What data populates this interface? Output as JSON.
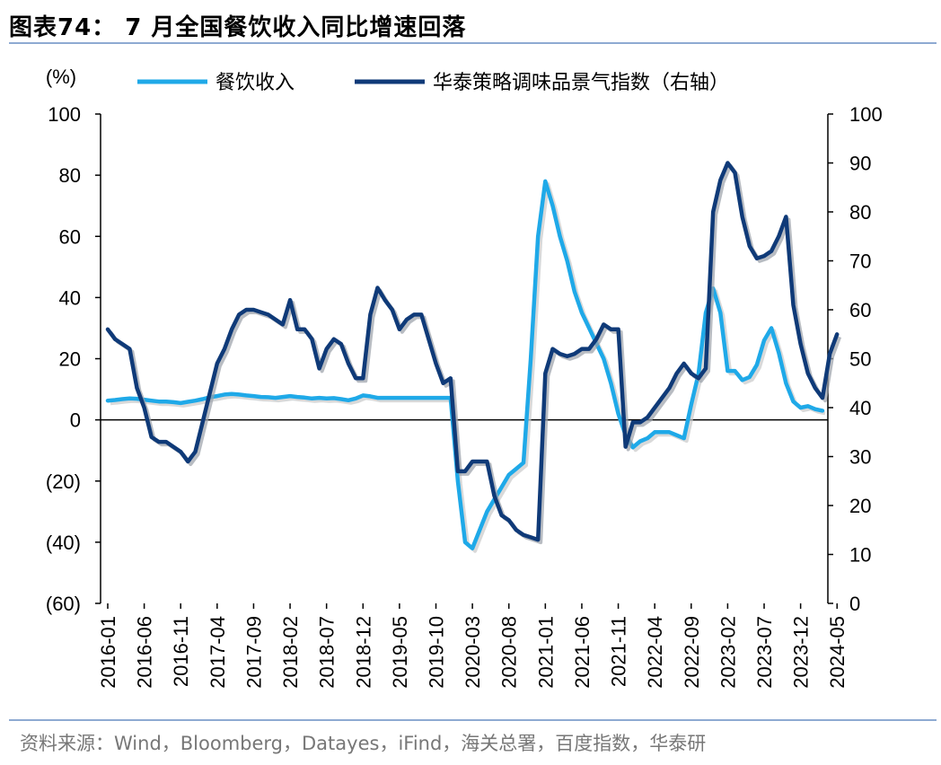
{
  "title": "图表74：  7 月全国餐饮收入同比增速回落",
  "source": "资料来源：Wind，Bloomberg，Datayes，iFind，海关总署，百度指数，华泰研",
  "chart_data": {
    "type": "line",
    "left_axis_unit": "(%)",
    "left_ticks": [
      "100",
      "80",
      "60",
      "40",
      "20",
      "0",
      "(20)",
      "(40)",
      "(60)"
    ],
    "left_ylim": [
      -60,
      100
    ],
    "right_ticks": [
      "100",
      "90",
      "80",
      "70",
      "60",
      "50",
      "40",
      "30",
      "20",
      "10",
      "0"
    ],
    "right_ylim": [
      0,
      100
    ],
    "x_ticks": [
      "2016-01",
      "2016-06",
      "2016-11",
      "2017-04",
      "2017-09",
      "2018-02",
      "2018-07",
      "2018-12",
      "2019-05",
      "2019-10",
      "2020-03",
      "2020-08",
      "2021-01",
      "2021-06",
      "2021-11",
      "2022-04",
      "2022-09",
      "2023-02",
      "2023-07",
      "2023-12",
      "2024-05"
    ],
    "colors": {
      "catering": "#1fa9e8",
      "index": "#0f3a78"
    },
    "series": [
      {
        "name": "餐饮收入",
        "axis": "left",
        "start": "2016-01",
        "values": [
          6.3,
          6.5,
          6.8,
          7.0,
          6.9,
          6.6,
          6.3,
          6.0,
          6.0,
          5.8,
          5.5,
          5.9,
          6.3,
          6.8,
          7.4,
          7.8,
          8.3,
          8.5,
          8.3,
          8.0,
          7.8,
          7.5,
          7.4,
          7.2,
          7.5,
          7.8,
          7.5,
          7.3,
          7.0,
          7.2,
          7.0,
          7.1,
          6.8,
          6.4,
          7.0,
          8.0,
          7.7,
          7.2,
          7.2,
          7.2,
          7.2,
          7.2,
          7.2,
          7.2,
          7.2,
          7.2,
          7.2,
          7.2,
          -20,
          -40,
          -42,
          -36,
          -30,
          -26,
          -22,
          -18,
          -16,
          -14,
          20,
          60,
          78,
          70,
          60,
          52,
          42,
          35,
          30,
          25,
          20,
          12,
          2,
          -5,
          -9,
          -7,
          -6,
          -4,
          -4,
          -4,
          -5,
          -6,
          5,
          15,
          35,
          43,
          35,
          16,
          16,
          13,
          14,
          18,
          26,
          30,
          22,
          12,
          6,
          4,
          4.5,
          3.5,
          3
        ]
      },
      {
        "name": "华泰策略调味品景气指数（右轴）",
        "axis": "right",
        "start": "2016-01",
        "values": [
          56,
          54,
          53,
          52,
          44,
          40,
          34,
          33,
          33,
          32,
          31,
          29,
          31,
          37,
          43,
          49,
          52,
          56,
          59,
          60,
          60,
          59.5,
          59,
          58,
          57,
          62,
          56,
          56,
          54,
          48,
          52,
          54,
          53,
          49,
          46,
          46,
          59,
          64.5,
          62,
          60,
          56,
          58,
          59,
          59,
          54,
          49,
          45,
          46,
          27,
          27,
          29,
          29,
          29,
          22,
          18,
          17,
          15,
          14,
          13.5,
          13,
          47,
          52,
          51,
          50.5,
          51,
          52,
          52,
          54,
          57,
          56,
          56,
          32,
          37,
          37,
          38,
          40,
          42,
          44,
          47,
          49,
          47,
          46,
          48,
          80,
          86.5,
          90,
          88,
          79,
          73,
          70.5,
          71,
          72,
          75,
          79,
          61,
          53,
          47,
          44,
          42,
          51,
          55
        ]
      }
    ]
  }
}
